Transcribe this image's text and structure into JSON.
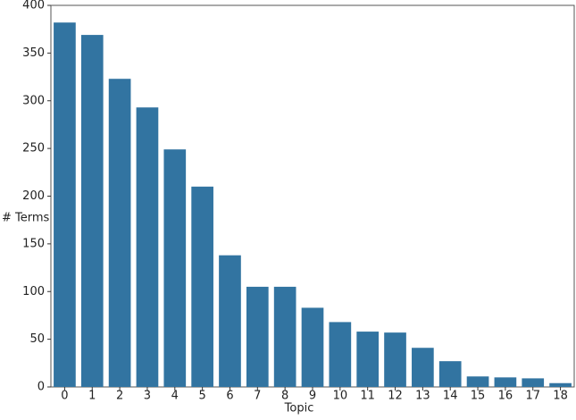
{
  "chart_data": {
    "type": "bar",
    "x_label": "Topic",
    "y_label": "# Terms",
    "categories": [
      "0",
      "1",
      "2",
      "3",
      "4",
      "5",
      "6",
      "7",
      "8",
      "9",
      "10",
      "11",
      "12",
      "13",
      "14",
      "15",
      "16",
      "17",
      "18"
    ],
    "values": [
      382,
      369,
      323,
      293,
      249,
      210,
      138,
      105,
      105,
      83,
      68,
      58,
      57,
      41,
      27,
      11,
      10,
      9,
      4
    ],
    "color": "#3274a1",
    "ylim": [
      0,
      400
    ],
    "yticks": [
      0,
      50,
      100,
      150,
      200,
      250,
      300,
      350,
      400
    ],
    "grid": false
  }
}
